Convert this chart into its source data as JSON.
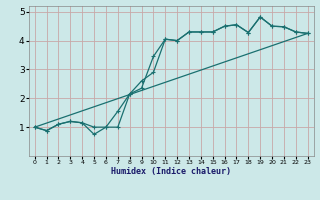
{
  "xlabel": "Humidex (Indice chaleur)",
  "xlim": [
    -0.5,
    23.5
  ],
  "ylim": [
    0,
    5.2
  ],
  "yticks": [
    1,
    2,
    3,
    4,
    5
  ],
  "xticks": [
    0,
    1,
    2,
    3,
    4,
    5,
    6,
    7,
    8,
    9,
    10,
    11,
    12,
    13,
    14,
    15,
    16,
    17,
    18,
    19,
    20,
    21,
    22,
    23
  ],
  "bg_color": "#cce8e8",
  "grid_color": "#c8a8a8",
  "line_color": "#1a7070",
  "line1_x": [
    0,
    1,
    2,
    3,
    4,
    5,
    6,
    7,
    8,
    9,
    10,
    11,
    12,
    13,
    14,
    15,
    16,
    17,
    18,
    19,
    20,
    21,
    22,
    23
  ],
  "line1_y": [
    1.0,
    0.88,
    1.1,
    1.2,
    1.15,
    0.75,
    1.0,
    1.55,
    2.15,
    2.6,
    2.9,
    4.05,
    4.0,
    4.3,
    4.3,
    4.3,
    4.5,
    4.55,
    4.28,
    4.82,
    4.5,
    4.48,
    4.3,
    4.25
  ],
  "line2_x": [
    0,
    1,
    2,
    3,
    4,
    5,
    6,
    7,
    8,
    9,
    10,
    11,
    12,
    13,
    14,
    15,
    16,
    17,
    18,
    19,
    20,
    21,
    22,
    23
  ],
  "line2_y": [
    1.0,
    0.88,
    1.1,
    1.2,
    1.15,
    1.0,
    1.0,
    1.0,
    2.15,
    2.35,
    3.45,
    4.05,
    4.0,
    4.3,
    4.3,
    4.3,
    4.5,
    4.55,
    4.28,
    4.82,
    4.5,
    4.48,
    4.3,
    4.25
  ],
  "line3_x": [
    0,
    23
  ],
  "line3_y": [
    1.0,
    4.25
  ]
}
